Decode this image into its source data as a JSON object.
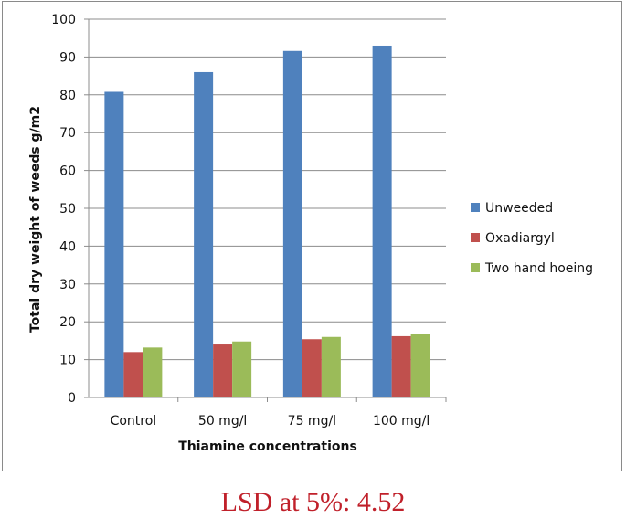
{
  "chart_data": {
    "type": "bar",
    "categories": [
      "Control",
      "50 mg/l",
      "75 mg/l",
      "100 mg/l"
    ],
    "series": [
      {
        "name": "Unweeded",
        "color": "#4f81bd",
        "values": [
          80.8,
          86.0,
          91.6,
          93.0
        ]
      },
      {
        "name": "Oxadiargyl",
        "color": "#c0504d",
        "values": [
          12.0,
          14.0,
          15.4,
          16.2
        ]
      },
      {
        "name": "Two hand hoeing",
        "color": "#9bbb59",
        "values": [
          13.2,
          14.8,
          16.0,
          16.8
        ]
      }
    ],
    "xlabel": "Thiamine concentrations",
    "ylabel": "Total dry weight of weeds g/m2",
    "ylim": [
      0,
      100
    ],
    "yticks": [
      "0",
      "10",
      "20",
      "30",
      "40",
      "50",
      "60",
      "70",
      "80",
      "90",
      "100"
    ],
    "grid": true,
    "legend_position": "right"
  },
  "note": "LSD at 5%: 4.52"
}
